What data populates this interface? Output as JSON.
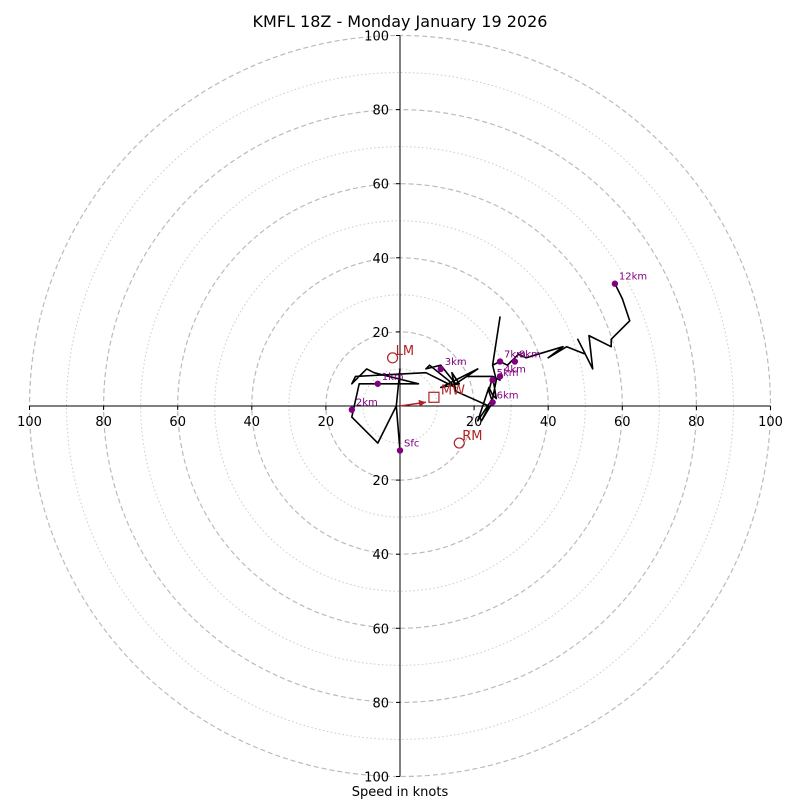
{
  "chart_data": {
    "type": "hodograph",
    "title": "KMFL 18Z - Monday January 19 2026",
    "xlabel": "Speed in knots",
    "range": [
      -100,
      100
    ],
    "major_rings": [
      20,
      40,
      60,
      80,
      100
    ],
    "minor_rings": [
      10,
      30,
      50,
      70,
      90
    ],
    "tick_labels": {
      "top": [
        "20",
        "40",
        "60",
        "80",
        "100"
      ],
      "bottom": [
        "20",
        "40",
        "60",
        "80",
        "100"
      ],
      "left": [
        "100",
        "80",
        "60",
        "40",
        "20"
      ],
      "right": [
        "20",
        "40",
        "60",
        "80",
        "100"
      ]
    },
    "hodograph_line": [
      [
        0,
        -12
      ],
      [
        -1,
        0
      ],
      [
        0,
        10
      ],
      [
        -1,
        0
      ],
      [
        -6,
        -10
      ],
      [
        -13,
        -3
      ],
      [
        -11,
        6
      ],
      [
        5,
        6
      ],
      [
        -7,
        9
      ],
      [
        -9,
        10
      ],
      [
        -13,
        6
      ],
      [
        -12,
        8
      ],
      [
        7,
        9
      ],
      [
        15,
        5
      ],
      [
        13,
        7
      ],
      [
        8,
        11
      ],
      [
        7,
        10
      ],
      [
        11,
        11
      ],
      [
        15,
        6
      ],
      [
        18,
        8
      ],
      [
        21,
        10
      ],
      [
        11,
        5
      ],
      [
        16,
        6
      ],
      [
        14,
        9
      ],
      [
        15,
        4
      ],
      [
        24,
        0
      ],
      [
        22,
        -4
      ],
      [
        25,
        1
      ],
      [
        24,
        4
      ],
      [
        25,
        8
      ],
      [
        18,
        8
      ],
      [
        25,
        8
      ],
      [
        27,
        7
      ],
      [
        25,
        8
      ],
      [
        26,
        2
      ],
      [
        25,
        3
      ],
      [
        24,
        5
      ],
      [
        21,
        -4
      ],
      [
        25,
        2
      ],
      [
        26,
        7
      ],
      [
        25,
        11
      ],
      [
        27,
        24
      ],
      [
        25,
        11
      ],
      [
        27,
        12
      ],
      [
        29,
        11
      ],
      [
        30,
        12
      ],
      [
        31,
        13
      ],
      [
        32,
        14
      ],
      [
        34,
        13
      ],
      [
        44,
        16
      ],
      [
        40,
        13
      ],
      [
        45,
        16
      ],
      [
        50,
        14
      ],
      [
        48,
        18
      ],
      [
        52,
        10
      ],
      [
        51,
        19
      ],
      [
        57,
        16
      ],
      [
        57,
        18
      ],
      [
        58,
        19
      ],
      [
        62,
        23
      ],
      [
        60,
        29
      ],
      [
        58,
        33
      ]
    ],
    "height_markers": [
      {
        "label": "Sfc",
        "u": 0,
        "v": -12
      },
      {
        "label": "1km",
        "u": -6,
        "v": 6
      },
      {
        "label": "2km",
        "u": -13,
        "v": -1
      },
      {
        "label": "3km",
        "u": 11,
        "v": 10
      },
      {
        "label": "4km",
        "u": 27,
        "v": 8
      },
      {
        "label": "5km",
        "u": 25,
        "v": 7
      },
      {
        "label": "6km",
        "u": 25,
        "v": 1
      },
      {
        "label": "7km",
        "u": 27,
        "v": 12
      },
      {
        "label": "8km",
        "u": 31,
        "v": 12
      },
      {
        "label": "12km",
        "u": 58,
        "v": 33
      }
    ],
    "storm_motions": [
      {
        "label": "LM",
        "u": -2,
        "v": 13,
        "shape": "circle"
      },
      {
        "label": "RM",
        "u": 16,
        "v": -10,
        "shape": "circle"
      },
      {
        "label": "MW",
        "u": 7,
        "v": 1,
        "shape": "square"
      }
    ],
    "shear_vector": {
      "from": [
        0,
        0
      ],
      "to": [
        7,
        1
      ]
    },
    "colors": {
      "trace": "#000000",
      "markers": "#800080",
      "storm": "#b22222",
      "grid_major": "#bbbbbb",
      "grid_minor": "#cccccc",
      "axes": "#000000"
    }
  }
}
